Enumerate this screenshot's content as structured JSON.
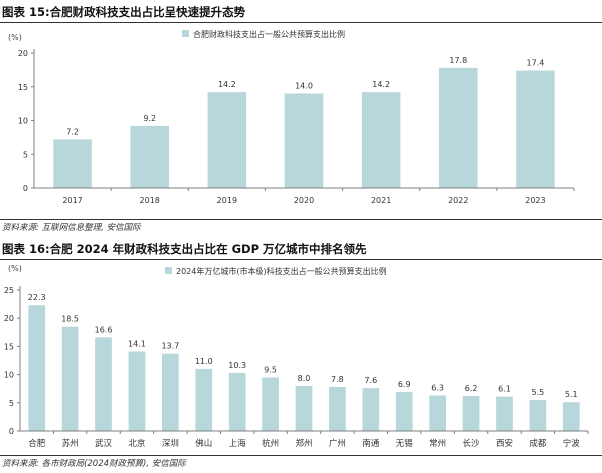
{
  "charts": [
    {
      "figure_title": "图表 15:合肥财政科技支出占比呈快速提升态势",
      "source": "资料来源: 互联网信息整理, 安信国际"
    },
    {
      "figure_title": "图表 16:合肥 2024 年财政科技支出占比在 GDP 万亿城市中排名领先",
      "source": "资料来源: 各市财政局(2024财政预算), 安信国际"
    }
  ],
  "colors": {
    "bar": "#b7d7da",
    "axis": "#7f7f7f",
    "text": "#222222"
  },
  "chart_data": [
    {
      "type": "bar",
      "title": "图表 15:合肥财政科技支出占比呈快速提升态势",
      "unit_label": "(%)",
      "categories": [
        "2017",
        "2018",
        "2019",
        "2020",
        "2021",
        "2022",
        "2023"
      ],
      "series": [
        {
          "name": "合肥财政科技支出占一般公共预算支出比例",
          "values": [
            7.2,
            9.2,
            14.2,
            14.0,
            14.2,
            17.8,
            17.4
          ]
        }
      ],
      "value_labels": [
        "7.2",
        "9.2",
        "14.2",
        "14.0",
        "14.2",
        "17.8",
        "17.4"
      ],
      "yticks": [
        "0",
        "5",
        "10",
        "15",
        "20"
      ],
      "ylim": [
        0,
        20
      ],
      "legend": "top-center",
      "grid": false
    },
    {
      "type": "bar",
      "title": "图表 16:合肥 2024 年财政科技支出占比在 GDP 万亿城市中排名领先",
      "unit_label": "(%)",
      "categories": [
        "合肥",
        "苏州",
        "武汉",
        "北京",
        "深圳",
        "佛山",
        "上海",
        "杭州",
        "郑州",
        "广州",
        "南通",
        "无锡",
        "常州",
        "长沙",
        "西安",
        "成都",
        "宁波"
      ],
      "series": [
        {
          "name": "2024年万亿城市(市本级)科技支出占一般公共预算支出比例",
          "values": [
            22.3,
            18.5,
            16.6,
            14.1,
            13.7,
            11.0,
            10.3,
            9.5,
            8.0,
            7.8,
            7.6,
            6.9,
            6.3,
            6.2,
            6.1,
            5.5,
            5.1
          ]
        }
      ],
      "value_labels": [
        "22.3",
        "18.5",
        "16.6",
        "14.1",
        "13.7",
        "11.0",
        "10.3",
        "9.5",
        "8.0",
        "7.8",
        "7.6",
        "6.9",
        "6.3",
        "6.2",
        "6.1",
        "5.5",
        "5.1"
      ],
      "yticks": [
        "0",
        "5",
        "10",
        "15",
        "20",
        "25"
      ],
      "ylim": [
        0,
        25
      ],
      "legend": "top-center",
      "grid": false
    }
  ]
}
